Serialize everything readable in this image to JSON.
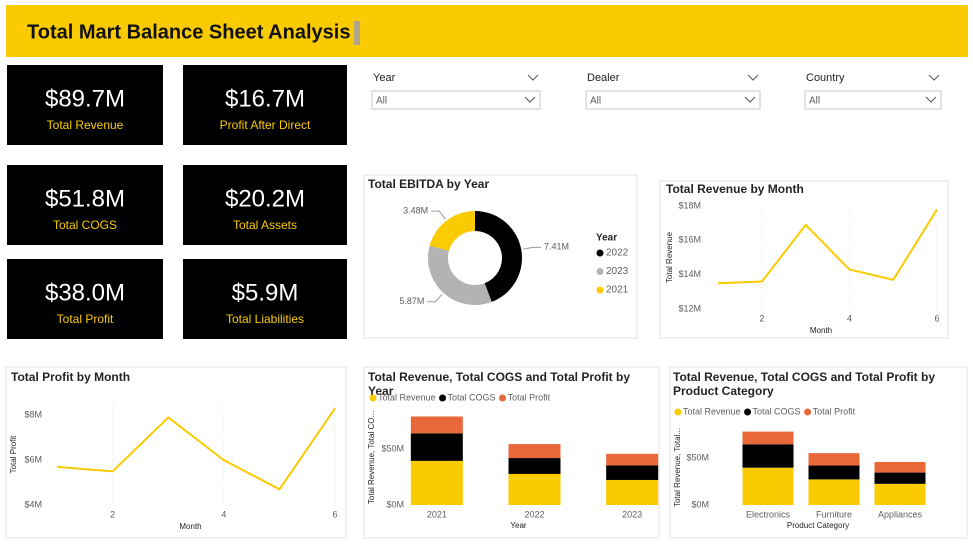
{
  "header": {
    "title": "Total Mart Balance Sheet Analysis"
  },
  "cards": [
    {
      "value": "$89.7M",
      "label": "Total Revenue"
    },
    {
      "value": "$16.7M",
      "label": "Profit After Direct"
    },
    {
      "value": "$51.8M",
      "label": "Total COGS"
    },
    {
      "value": "$20.2M",
      "label": "Total Assets"
    },
    {
      "value": "$38.0M",
      "label": "Total Profit"
    },
    {
      "value": "$5.9M",
      "label": "Total Liabilities"
    }
  ],
  "slicers": [
    {
      "label": "Year",
      "value": "All"
    },
    {
      "label": "Dealer",
      "value": "All"
    },
    {
      "label": "Country",
      "value": "All"
    }
  ],
  "chart_data": [
    {
      "type": "donut",
      "title": "Total EBITDA by Year",
      "legend_title": "Year",
      "categories": [
        "2022",
        "2023",
        "2021"
      ],
      "values": [
        7.41,
        5.87,
        3.48
      ],
      "value_labels": [
        "7.41M",
        "5.87M",
        "3.48M"
      ],
      "colors": [
        "#000000",
        "#b3b3b3",
        "#f9cb00"
      ]
    },
    {
      "type": "line",
      "title": "Total Revenue by Month",
      "xlabel": "Month",
      "ylabel": "Total Revenue",
      "x": [
        1,
        2,
        3,
        4,
        5,
        6
      ],
      "values": [
        13.5,
        13.6,
        16.9,
        14.3,
        13.7,
        17.8
      ],
      "color": "#f9cb00",
      "xlim": [
        0.7,
        6
      ],
      "xticks": [
        2,
        4,
        6
      ],
      "ylim": [
        12,
        18
      ],
      "yticks": [
        {
          "value": 12,
          "label": "$12M"
        },
        {
          "value": 14,
          "label": "$14M"
        },
        {
          "value": 16,
          "label": "$16M"
        },
        {
          "value": 18,
          "label": "$18M"
        }
      ],
      "grid": true
    },
    {
      "type": "line",
      "title": "Total Profit by Month",
      "xlabel": "Month",
      "ylabel": "Total Profit",
      "x": [
        1,
        2,
        3,
        4,
        5,
        6
      ],
      "values": [
        5.7,
        5.5,
        7.9,
        6.0,
        4.7,
        8.3
      ],
      "color": "#f9cb00",
      "xlim": [
        0.8,
        6
      ],
      "xticks": [
        2,
        4,
        6
      ],
      "ylim": [
        4,
        8.5
      ],
      "yticks": [
        {
          "value": 4,
          "label": "$4M"
        },
        {
          "value": 6,
          "label": "$6M"
        },
        {
          "value": 8,
          "label": "$8M"
        }
      ],
      "grid": true
    },
    {
      "type": "bar",
      "stacked": true,
      "title": "Total Revenue, Total COGS and Total Profit by Year",
      "xlabel": "Year",
      "ylabel": "Total Revenue, Total CO...",
      "categories": [
        "2021",
        "2022",
        "2023"
      ],
      "series": [
        {
          "name": "Total Revenue",
          "color": "#f9cb00",
          "values": [
            39.5,
            27.8,
            22.4
          ]
        },
        {
          "name": "Total COGS",
          "color": "#000000",
          "values": [
            24.6,
            14.2,
            13.0
          ]
        },
        {
          "name": "Total Profit",
          "color": "#e8683a",
          "values": [
            15.1,
            12.5,
            10.4
          ]
        }
      ],
      "ylim": [
        0,
        85
      ],
      "yticks": [
        {
          "value": 0,
          "label": "$0M"
        },
        {
          "value": 50,
          "label": "$50M"
        }
      ]
    },
    {
      "type": "bar",
      "stacked": true,
      "title": "Total Revenue, Total COGS and Total Profit by Product Category",
      "xlabel": "Product Category",
      "ylabel": "Total Revenue, Total...",
      "categories": [
        "Electronics",
        "Furniture",
        "Appliances"
      ],
      "series": [
        {
          "name": "Total Revenue",
          "color": "#f9cb00",
          "values": [
            39.8,
            27.3,
            22.6
          ]
        },
        {
          "name": "Total COGS",
          "color": "#000000",
          "values": [
            25.0,
            14.8,
            12.0
          ]
        },
        {
          "name": "Total Profit",
          "color": "#e8683a",
          "values": [
            13.5,
            13.2,
            11.3
          ]
        }
      ],
      "ylim": [
        0,
        80
      ],
      "yticks": [
        {
          "value": 0,
          "label": "$0M"
        },
        {
          "value": 50,
          "label": "$50M"
        }
      ]
    }
  ]
}
